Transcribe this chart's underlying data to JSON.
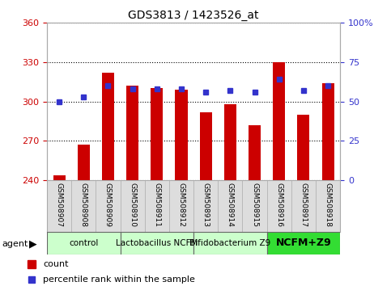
{
  "title": "GDS3813 / 1423526_at",
  "samples": [
    "GSM508907",
    "GSM508908",
    "GSM508909",
    "GSM508910",
    "GSM508911",
    "GSM508912",
    "GSM508913",
    "GSM508914",
    "GSM508915",
    "GSM508916",
    "GSM508917",
    "GSM508918"
  ],
  "counts": [
    244,
    267,
    322,
    312,
    310,
    309,
    292,
    298,
    282,
    330,
    290,
    314
  ],
  "percentile_ranks": [
    50,
    53,
    60,
    58,
    58,
    58,
    56,
    57,
    56,
    64,
    57,
    60
  ],
  "ymin": 240,
  "ymax": 360,
  "yticks": [
    240,
    270,
    300,
    330,
    360
  ],
  "y2min": 0,
  "y2max": 100,
  "y2ticks": [
    0,
    25,
    50,
    75,
    100
  ],
  "y2labels": [
    "0",
    "25",
    "50",
    "75",
    "100%"
  ],
  "groups": [
    {
      "label": "control",
      "start": 0,
      "end": 3,
      "color": "#ccffcc",
      "bold": false
    },
    {
      "label": "Lactobacillus NCFM",
      "start": 3,
      "end": 6,
      "color": "#ccffcc",
      "bold": false
    },
    {
      "label": "Bifidobacterium Z9",
      "start": 6,
      "end": 9,
      "color": "#ccffcc",
      "bold": false
    },
    {
      "label": "NCFM+Z9",
      "start": 9,
      "end": 12,
      "color": "#33dd33",
      "bold": true
    }
  ],
  "bar_color": "#cc0000",
  "dot_color": "#3333cc",
  "bar_bottom": 240,
  "left_tick_color": "#cc0000",
  "right_tick_color": "#3333cc",
  "sample_bg_color": "#dddddd",
  "figsize": [
    4.83,
    3.54
  ],
  "dpi": 100
}
